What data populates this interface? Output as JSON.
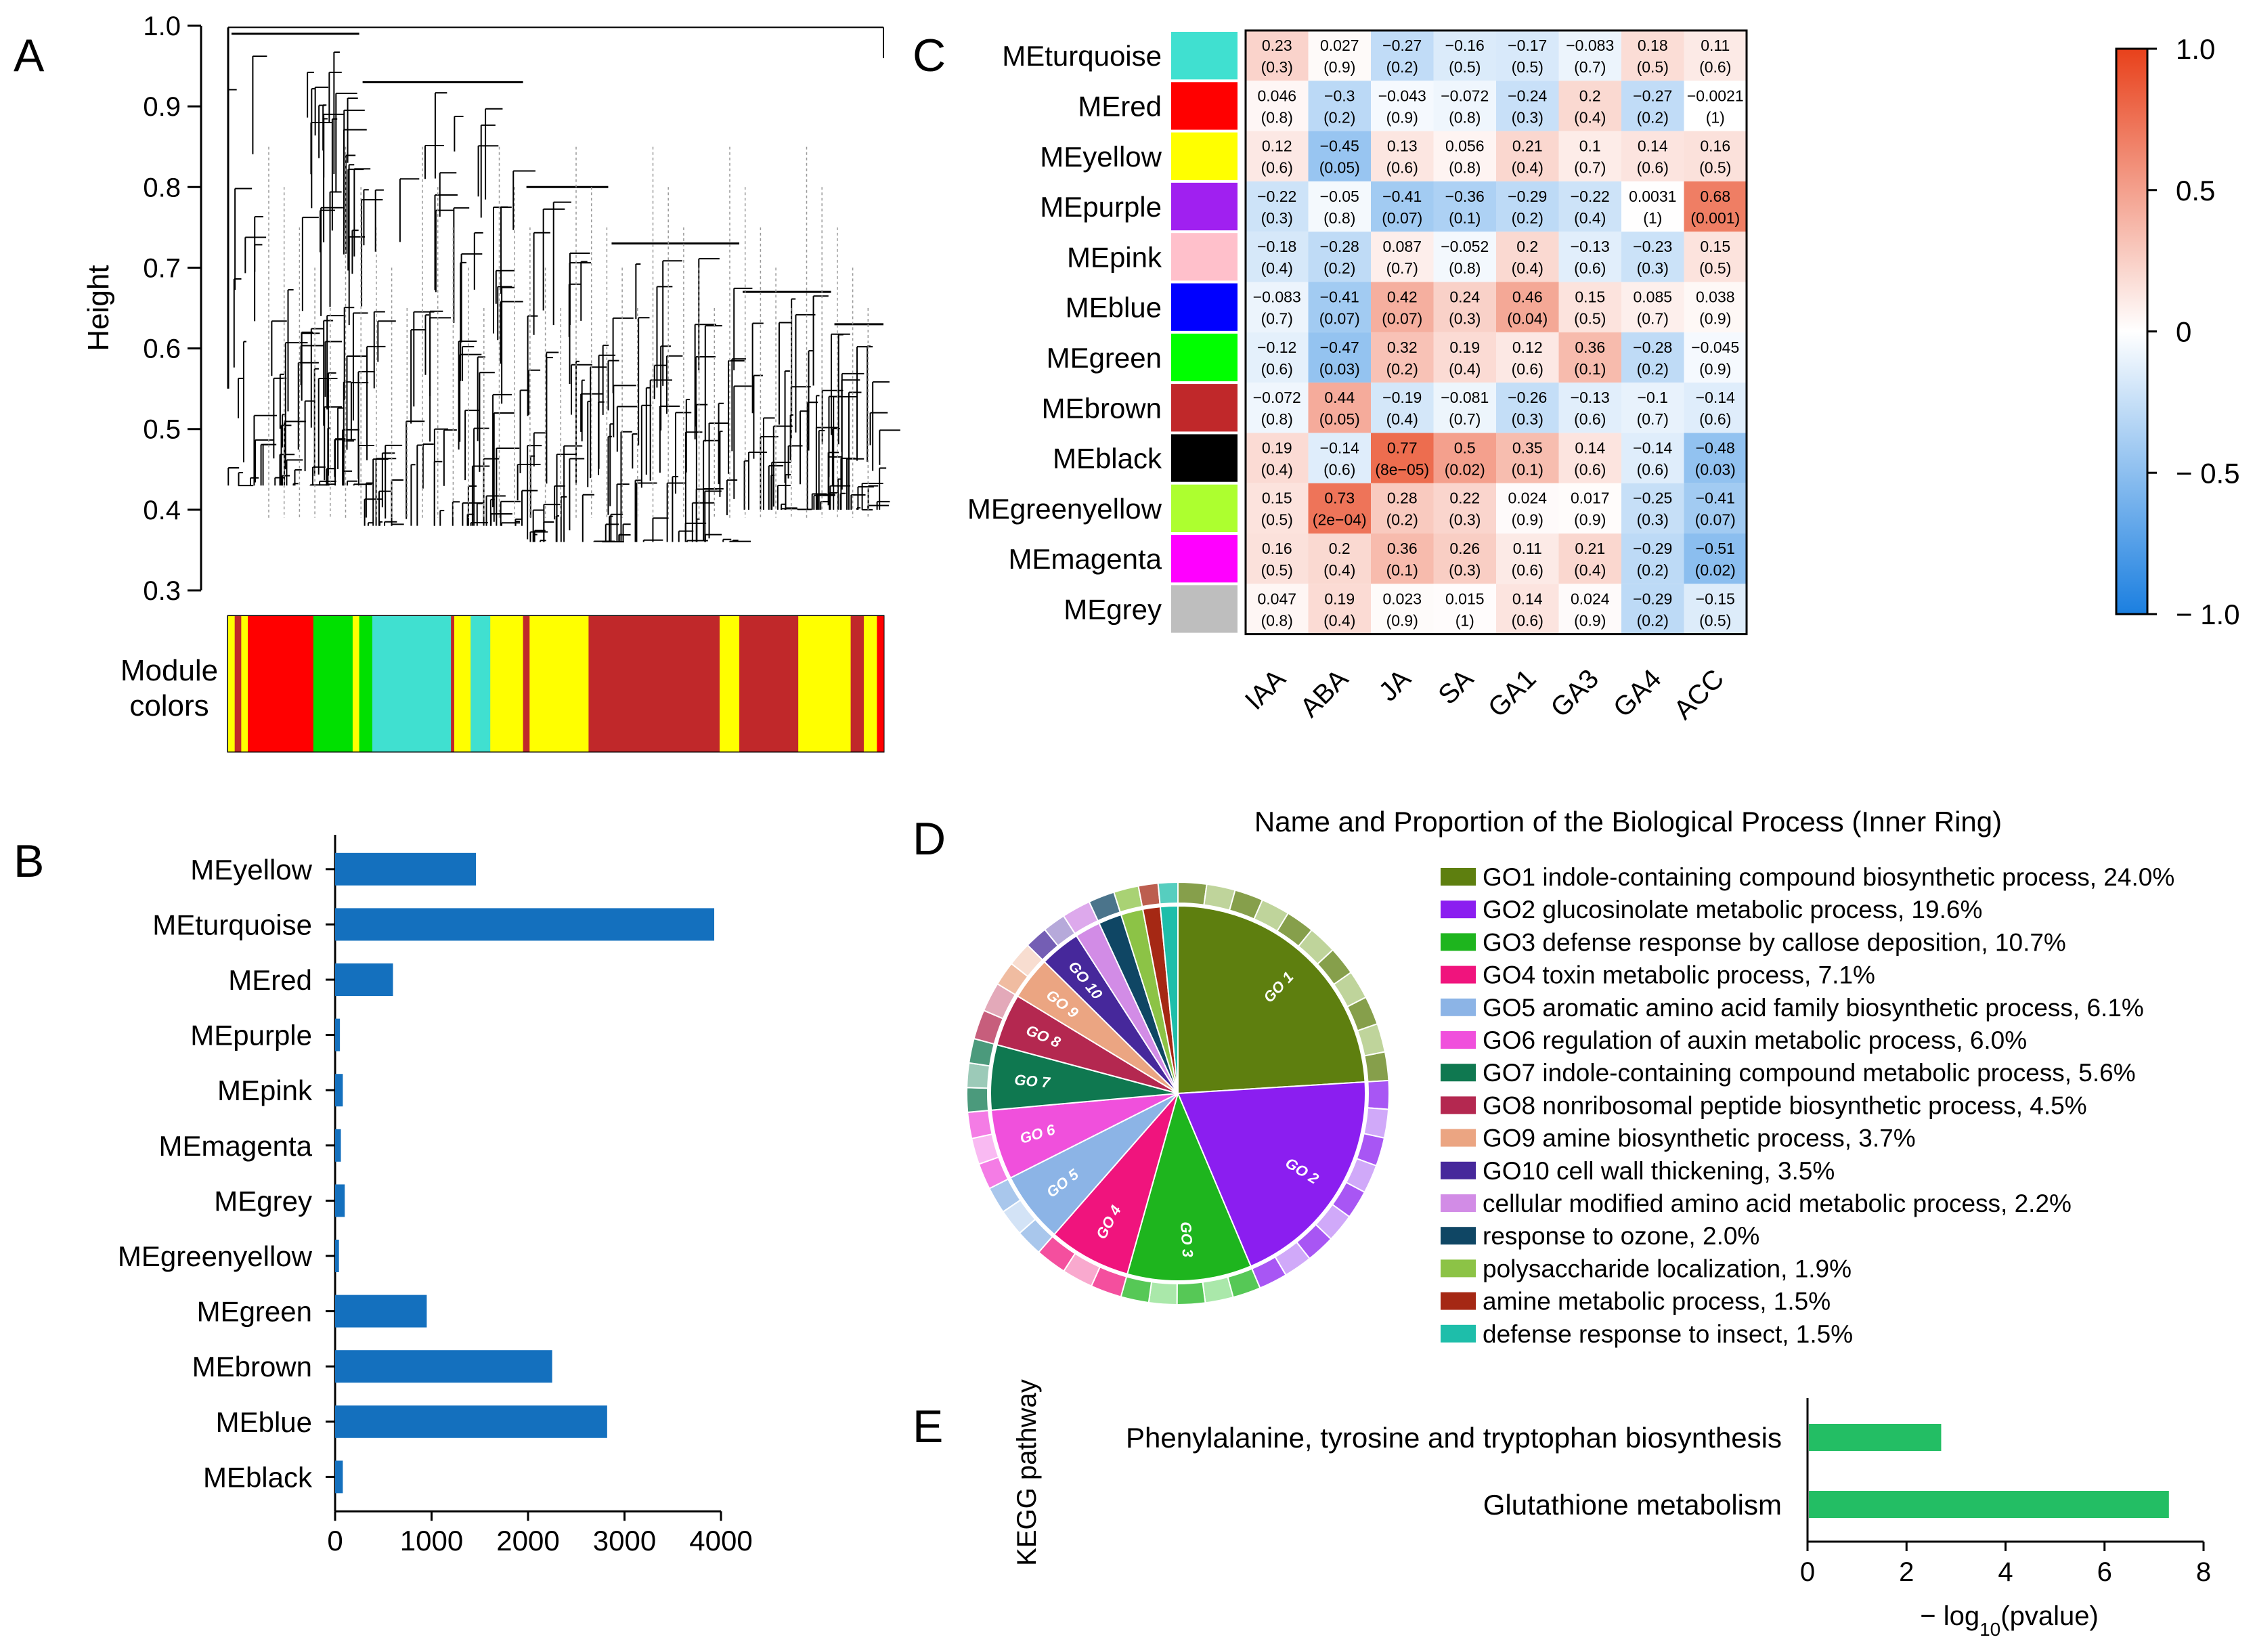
{
  "panel_labels": {
    "a": "A",
    "b": "B",
    "c": "C",
    "d": "D",
    "e": "E"
  },
  "chart_data": [
    {
      "id": "A",
      "type": "dendrogram",
      "ylabel": "Height",
      "ylim": [
        0.3,
        1.0
      ],
      "yticks": [
        "0.3",
        "0.4",
        "0.5",
        "0.6",
        "0.7",
        "0.8",
        "0.9",
        "1.0"
      ],
      "yvalues": [
        0.3,
        0.4,
        0.5,
        0.6,
        0.7,
        0.8,
        0.9,
        1.0
      ],
      "color_bar_label": [
        "Module",
        "colors"
      ],
      "module_strip": [
        {
          "color": "#FFFF00",
          "from": 0.0,
          "to": 0.01
        },
        {
          "color": "#C0282A",
          "from": 0.01,
          "to": 0.02
        },
        {
          "color": "#FFFF00",
          "from": 0.02,
          "to": 0.03
        },
        {
          "color": "#FF0000",
          "from": 0.03,
          "to": 0.13
        },
        {
          "color": "#00E000",
          "from": 0.13,
          "to": 0.19
        },
        {
          "color": "#FFFF00",
          "from": 0.19,
          "to": 0.2
        },
        {
          "color": "#00E000",
          "from": 0.2,
          "to": 0.22
        },
        {
          "color": "#40E0D0",
          "from": 0.22,
          "to": 0.34
        },
        {
          "color": "#C0282A",
          "from": 0.34,
          "to": 0.345
        },
        {
          "color": "#FFFF00",
          "from": 0.345,
          "to": 0.37
        },
        {
          "color": "#40E0D0",
          "from": 0.37,
          "to": 0.4
        },
        {
          "color": "#FFFF00",
          "from": 0.4,
          "to": 0.45
        },
        {
          "color": "#C0282A",
          "from": 0.45,
          "to": 0.46
        },
        {
          "color": "#FFFF00",
          "from": 0.46,
          "to": 0.55
        },
        {
          "color": "#C0282A",
          "from": 0.55,
          "to": 0.75
        },
        {
          "color": "#FFFF00",
          "from": 0.75,
          "to": 0.78
        },
        {
          "color": "#C0282A",
          "from": 0.78,
          "to": 0.87
        },
        {
          "color": "#FFFF00",
          "from": 0.87,
          "to": 0.95
        },
        {
          "color": "#C0282A",
          "from": 0.95,
          "to": 0.97
        },
        {
          "color": "#FFFF00",
          "from": 0.97,
          "to": 0.99
        },
        {
          "color": "#FF0000",
          "from": 0.99,
          "to": 1.0
        }
      ]
    },
    {
      "id": "B",
      "type": "bar",
      "orientation": "horizontal",
      "categories": [
        "MEyellow",
        "MEturquoise",
        "MEred",
        "MEpurple",
        "MEpink",
        "MEmagenta",
        "MEgrey",
        "MEgreenyellow",
        "MEgreen",
        "MEbrown",
        "MEblue",
        "MEblack"
      ],
      "values": [
        1460,
        3930,
        600,
        50,
        80,
        60,
        100,
        40,
        950,
        2250,
        2820,
        80
      ],
      "xlim": [
        0,
        4000
      ],
      "xticks": [
        "0",
        "1000",
        "2000",
        "3000",
        "4000"
      ],
      "xvalues": [
        0,
        1000,
        2000,
        3000,
        4000
      ],
      "bar_color": "#1470BE"
    },
    {
      "id": "C",
      "type": "heatmap",
      "rows": [
        "MEturquoise",
        "MEred",
        "MEyellow",
        "MEpurple",
        "MEpink",
        "MEblue",
        "MEgreen",
        "MEbrown",
        "MEblack",
        "MEgreenyellow",
        "MEmagenta",
        "MEgrey"
      ],
      "row_colors": [
        "#40E0D0",
        "#FF0000",
        "#FFFF00",
        "#A020F0",
        "#FFC0CB",
        "#0000FF",
        "#00FF00",
        "#C0282A",
        "#000000",
        "#ADFF2F",
        "#FF00FF",
        "#BEBEBE"
      ],
      "columns": [
        "IAA",
        "ABA",
        "JA",
        "SA",
        "GA1",
        "GA3",
        "GA4",
        "ACC"
      ],
      "values": [
        [
          0.23,
          0.027,
          -0.27,
          -0.16,
          -0.17,
          -0.083,
          0.18,
          0.11
        ],
        [
          0.046,
          -0.3,
          -0.043,
          -0.072,
          -0.24,
          0.2,
          -0.27,
          -0.0021
        ],
        [
          0.12,
          -0.45,
          0.13,
          0.056,
          0.21,
          0.1,
          0.14,
          0.16
        ],
        [
          -0.22,
          -0.05,
          -0.41,
          -0.36,
          -0.29,
          -0.22,
          0.0031,
          0.68
        ],
        [
          -0.18,
          -0.28,
          0.087,
          -0.052,
          0.2,
          -0.13,
          -0.23,
          0.15
        ],
        [
          -0.083,
          -0.41,
          0.42,
          0.24,
          0.46,
          0.15,
          0.085,
          0.038
        ],
        [
          -0.12,
          -0.47,
          0.32,
          0.19,
          0.12,
          0.36,
          -0.28,
          -0.045
        ],
        [
          -0.072,
          0.44,
          -0.19,
          -0.081,
          -0.26,
          -0.13,
          -0.1,
          -0.14
        ],
        [
          0.19,
          -0.14,
          0.77,
          0.5,
          0.35,
          0.14,
          -0.14,
          -0.48
        ],
        [
          0.15,
          0.73,
          0.28,
          0.22,
          0.024,
          0.017,
          -0.25,
          -0.41
        ],
        [
          0.16,
          0.2,
          0.36,
          0.26,
          0.11,
          0.21,
          -0.29,
          -0.51
        ],
        [
          0.047,
          0.19,
          0.023,
          0.015,
          0.14,
          0.024,
          -0.29,
          -0.15
        ]
      ],
      "cell_labels": [
        [
          "0.23",
          "0.027",
          "−0.27",
          "−0.16",
          "−0.17",
          "−0.083",
          "0.18",
          "0.11"
        ],
        [
          "0.046",
          "−0.3",
          "−0.043",
          "−0.072",
          "−0.24",
          "0.2",
          "−0.27",
          "−0.0021"
        ],
        [
          "0.12",
          "−0.45",
          "0.13",
          "0.056",
          "0.21",
          "0.1",
          "0.14",
          "0.16"
        ],
        [
          "−0.22",
          "−0.05",
          "−0.41",
          "−0.36",
          "−0.29",
          "−0.22",
          "0.0031",
          "0.68"
        ],
        [
          "−0.18",
          "−0.28",
          "0.087",
          "−0.052",
          "0.2",
          "−0.13",
          "−0.23",
          "0.15"
        ],
        [
          "−0.083",
          "−0.41",
          "0.42",
          "0.24",
          "0.46",
          "0.15",
          "0.085",
          "0.038"
        ],
        [
          "−0.12",
          "−0.47",
          "0.32",
          "0.19",
          "0.12",
          "0.36",
          "−0.28",
          "−0.045"
        ],
        [
          "−0.072",
          "0.44",
          "−0.19",
          "−0.081",
          "−0.26",
          "−0.13",
          "−0.1",
          "−0.14"
        ],
        [
          "0.19",
          "−0.14",
          "0.77",
          "0.5",
          "0.35",
          "0.14",
          "−0.14",
          "−0.48"
        ],
        [
          "0.15",
          "0.73",
          "0.28",
          "0.22",
          "0.024",
          "0.017",
          "−0.25",
          "−0.41"
        ],
        [
          "0.16",
          "0.2",
          "0.36",
          "0.26",
          "0.11",
          "0.21",
          "−0.29",
          "−0.51"
        ],
        [
          "0.047",
          "0.19",
          "0.023",
          "0.015",
          "0.14",
          "0.024",
          "−0.29",
          "−0.15"
        ]
      ],
      "pvalues": [
        [
          "(0.3)",
          "(0.9)",
          "(0.2)",
          "(0.5)",
          "(0.5)",
          "(0.7)",
          "(0.5)",
          "(0.6)"
        ],
        [
          "(0.8)",
          "(0.2)",
          "(0.9)",
          "(0.8)",
          "(0.3)",
          "(0.4)",
          "(0.2)",
          "(1)"
        ],
        [
          "(0.6)",
          "(0.05)",
          "(0.6)",
          "(0.8)",
          "(0.4)",
          "(0.7)",
          "(0.6)",
          "(0.5)"
        ],
        [
          "(0.3)",
          "(0.8)",
          "(0.07)",
          "(0.1)",
          "(0.2)",
          "(0.4)",
          "(1)",
          "(0.001)"
        ],
        [
          "(0.4)",
          "(0.2)",
          "(0.7)",
          "(0.8)",
          "(0.4)",
          "(0.6)",
          "(0.3)",
          "(0.5)"
        ],
        [
          "(0.7)",
          "(0.07)",
          "(0.07)",
          "(0.3)",
          "(0.04)",
          "(0.5)",
          "(0.7)",
          "(0.9)"
        ],
        [
          "(0.6)",
          "(0.03)",
          "(0.2)",
          "(0.4)",
          "(0.6)",
          "(0.1)",
          "(0.2)",
          "(0.9)"
        ],
        [
          "(0.8)",
          "(0.05)",
          "(0.4)",
          "(0.7)",
          "(0.3)",
          "(0.6)",
          "(0.7)",
          "(0.6)"
        ],
        [
          "(0.4)",
          "(0.6)",
          "(8e−05)",
          "(0.02)",
          "(0.1)",
          "(0.6)",
          "(0.6)",
          "(0.03)"
        ],
        [
          "(0.5)",
          "(2e−04)",
          "(0.2)",
          "(0.3)",
          "(0.9)",
          "(0.9)",
          "(0.3)",
          "(0.07)"
        ],
        [
          "(0.5)",
          "(0.4)",
          "(0.1)",
          "(0.3)",
          "(0.6)",
          "(0.4)",
          "(0.2)",
          "(0.02)"
        ],
        [
          "(0.8)",
          "(0.4)",
          "(0.9)",
          "(1)",
          "(0.6)",
          "(0.9)",
          "(0.2)",
          "(0.5)"
        ]
      ],
      "colorbar": {
        "range": [
          -1.0,
          1.0
        ],
        "ticks": [
          "1.0",
          "0.5",
          "0",
          "− 0.5",
          "− 1.0"
        ],
        "tick_values": [
          1.0,
          0.5,
          0,
          -0.5,
          -1.0
        ],
        "low_color": "#1B7FE0",
        "mid_color": "#FFFFFF",
        "high_color": "#E8411B"
      }
    },
    {
      "id": "D",
      "type": "pie",
      "title": "Name and Proportion of the Biological Process (Inner Ring)",
      "slices": [
        {
          "label": "GO1 indole-containing compound biosynthetic process, 24.0%",
          "inner": "GO 1",
          "value": 24.0,
          "color": "#5E7F0F",
          "light": "#AAC57A"
        },
        {
          "label": "GO2 glucosinolate metabolic process, 19.6%",
          "inner": "GO 2",
          "value": 19.6,
          "color": "#8B1EF0",
          "light": "#C08CF7"
        },
        {
          "label": "GO3 defense response by callose deposition, 10.7%",
          "inner": "GO 3",
          "value": 10.7,
          "color": "#1EB51E",
          "light": "#8EE08E"
        },
        {
          "label": "GO4 toxin metabolic process, 7.1%",
          "inner": "GO 4",
          "value": 7.1,
          "color": "#F0147D",
          "light": "#F78CBE"
        },
        {
          "label": "GO5 aromatic amino acid family biosynthetic process, 6.1%",
          "inner": "GO 5",
          "value": 6.1,
          "color": "#8CB4E6",
          "light": "#C4DAF3"
        },
        {
          "label": "GO6 regulation of auxin metabolic process, 6.0%",
          "inner": "GO 6",
          "value": 6.0,
          "color": "#F050DC",
          "light": "#F7A3EE"
        },
        {
          "label": "GO7 indole-containing compound metabolic process, 5.6%",
          "inner": "GO 7",
          "value": 5.6,
          "color": "#0F7850",
          "light": "#7BB8A0"
        },
        {
          "label": "GO8 nonribosomal peptide biosynthetic process, 4.5%",
          "inner": "GO 8",
          "value": 4.5,
          "color": "#B42850",
          "light": "#DA8CA2"
        },
        {
          "label": "GO9 amine biosynthetic process, 3.7%",
          "inner": "GO 9",
          "value": 3.7,
          "color": "#EBA582",
          "light": "#F5D2C0"
        },
        {
          "label": "GO10 cell wall thickening, 3.5%",
          "inner": "GO 10",
          "value": 3.5,
          "color": "#46289B",
          "light": "#9E8CCD"
        },
        {
          "label": "cellular modified amino acid metabolic process, 2.2%",
          "inner": "",
          "value": 2.2,
          "color": "#D28CE6",
          "light": "#E9C5F2"
        },
        {
          "label": "response to ozone, 2.0%",
          "inner": "",
          "value": 2.0,
          "color": "#0F4664",
          "light": "#7A98A8"
        },
        {
          "label": "polysaccharide localization, 1.9%",
          "inner": "",
          "value": 1.9,
          "color": "#8CC346",
          "light": "#C5E1A2"
        },
        {
          "label": "amine metabolic process, 1.5%",
          "inner": "",
          "value": 1.5,
          "color": "#A52814",
          "light": "#D2938A"
        },
        {
          "label": "defense response to insect, 1.5%",
          "inner": "",
          "value": 1.5,
          "color": "#1EBEAA",
          "light": "#8FDED4"
        }
      ]
    },
    {
      "id": "E",
      "type": "bar",
      "orientation": "horizontal",
      "ylabel": "KEGG pathway",
      "xlabel_prefix": "− log",
      "xlabel_sub": "10",
      "xlabel_suffix": "(pvalue)",
      "categories": [
        "Phenylalanine, tyrosine and tryptophan biosynthesis",
        "Glutathione metabolism"
      ],
      "values": [
        2.7,
        7.3
      ],
      "xlim": [
        0,
        8
      ],
      "xticks": [
        "0",
        "2",
        "4",
        "6",
        "8"
      ],
      "xvalues": [
        0,
        2,
        4,
        6,
        8
      ],
      "bar_color": "#23BE64"
    }
  ]
}
